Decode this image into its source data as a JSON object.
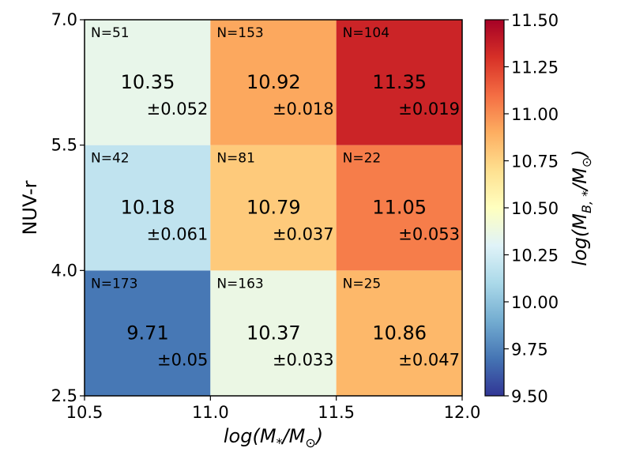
{
  "chart_data": {
    "type": "heatmap",
    "title": "",
    "x_edges": [
      10.5,
      11.0,
      11.5,
      12.0
    ],
    "y_edges": [
      2.5,
      4.0,
      5.5,
      7.0
    ],
    "x_ticks": [
      "10.5",
      "11.0",
      "11.5",
      "12.0"
    ],
    "y_ticks": [
      "2.5",
      "4.0",
      "5.5",
      "7.0"
    ],
    "xlabel": {
      "main": "log(M",
      "sub": "*",
      "tail": "/M",
      "sun": "⊙",
      "close": ")"
    },
    "ylabel": "NUV-r",
    "cells": [
      {
        "row": 0,
        "col": 0,
        "value": 9.71,
        "n": "N=173",
        "value_label": "9.71",
        "err_label": "±0.05"
      },
      {
        "row": 0,
        "col": 1,
        "value": 10.37,
        "n": "N=163",
        "value_label": "10.37",
        "err_label": "±0.033"
      },
      {
        "row": 0,
        "col": 2,
        "value": 10.86,
        "n": "N=25",
        "value_label": "10.86",
        "err_label": "±0.047"
      },
      {
        "row": 1,
        "col": 0,
        "value": 10.18,
        "n": "N=42",
        "value_label": "10.18",
        "err_label": "±0.061"
      },
      {
        "row": 1,
        "col": 1,
        "value": 10.79,
        "n": "N=81",
        "value_label": "10.79",
        "err_label": "±0.037"
      },
      {
        "row": 1,
        "col": 2,
        "value": 11.05,
        "n": "N=22",
        "value_label": "11.05",
        "err_label": "±0.053"
      },
      {
        "row": 2,
        "col": 0,
        "value": 10.35,
        "n": "N=51",
        "value_label": "10.35",
        "err_label": "±0.052"
      },
      {
        "row": 2,
        "col": 1,
        "value": 10.92,
        "n": "N=153",
        "value_label": "10.92",
        "err_label": "±0.018"
      },
      {
        "row": 2,
        "col": 2,
        "value": 11.35,
        "n": "N=104",
        "value_label": "11.35",
        "err_label": "±0.019"
      }
    ],
    "colorbar": {
      "colormap": "RdYlBu_r",
      "range": [
        9.5,
        11.5
      ],
      "ticks": [
        "9.50",
        "9.75",
        "10.00",
        "10.25",
        "10.50",
        "10.75",
        "11.00",
        "11.25",
        "11.50"
      ],
      "label": {
        "main": "log(M",
        "sub": "B, *",
        "tail": "/M",
        "sun": "⊙",
        "close": ")"
      }
    }
  }
}
